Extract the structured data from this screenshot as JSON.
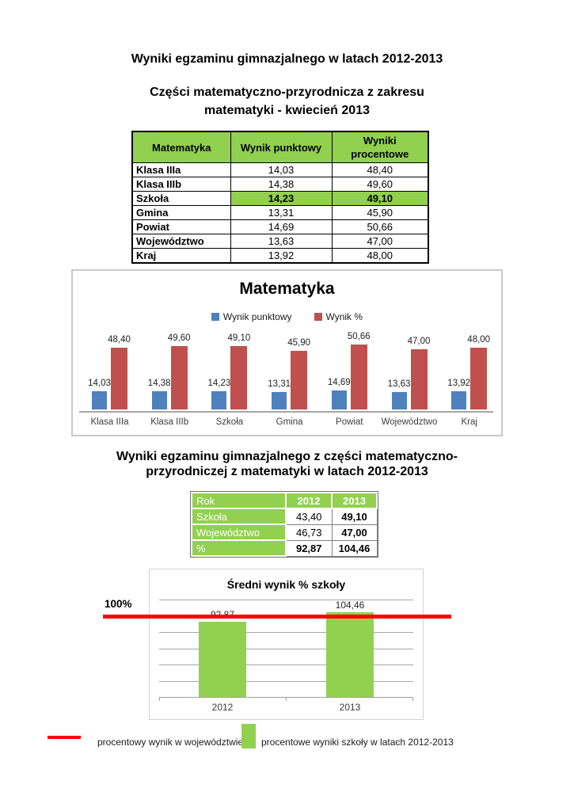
{
  "titles": {
    "main": "Wyniki egzaminu gimnazjalnego w latach 2012-2013",
    "sub_line1": "Części matematyczno-przyrodnicza z zakresu",
    "sub_line2": "matematyki - kwiecień 2013",
    "second_line1": "Wyniki egzaminu gimnazjalnego z części matematyczno-",
    "second_line2": "przyrodniczej z matematyki w latach 2012-2013"
  },
  "table1": {
    "headers": [
      "Matematyka",
      "Wynik punktowy",
      "Wyniki procentowe"
    ],
    "rows": [
      {
        "label": "Klasa IIIa",
        "punktowy": "14,03",
        "procentowe": "48,40",
        "highlight": false
      },
      {
        "label": "Klasa IIIb",
        "punktowy": "14,38",
        "procentowe": "49,60",
        "highlight": false
      },
      {
        "label": "Szkoła",
        "punktowy": "14,23",
        "procentowe": "49,10",
        "highlight": true
      },
      {
        "label": "Gmina",
        "punktowy": "13,31",
        "procentowe": "45,90",
        "highlight": false
      },
      {
        "label": "Powiat",
        "punktowy": "14,69",
        "procentowe": "50,66",
        "highlight": false
      },
      {
        "label": "Województwo",
        "punktowy": "13,63",
        "procentowe": "47,00",
        "highlight": false
      },
      {
        "label": "Kraj",
        "punktowy": "13,92",
        "procentowe": "48,00",
        "highlight": false
      }
    ]
  },
  "table2": {
    "header": {
      "label": "Rok",
      "y2012": "2012",
      "y2013": "2013"
    },
    "rows": [
      {
        "label": "Szkoła",
        "v2012": "43,40",
        "v2013": "49,10",
        "bold2012": false,
        "bold2013": true
      },
      {
        "label": "Województwo",
        "v2012": "46,73",
        "v2013": "47,00",
        "bold2012": false,
        "bold2013": true
      },
      {
        "label": "%",
        "v2012": "92,87",
        "v2013": "104,46",
        "bold2012": true,
        "bold2013": true
      }
    ]
  },
  "chart_data": [
    {
      "type": "bar",
      "title": "Matematyka",
      "categories": [
        "Klasa IIIa",
        "Klasa IIIb",
        "Szkoła",
        "Gmina",
        "Powiat",
        "Województwo",
        "Kraj"
      ],
      "series": [
        {
          "name": "Wynik punktowy",
          "color": "#4f81bd",
          "values": [
            14.03,
            14.38,
            14.23,
            13.31,
            14.69,
            13.63,
            13.92
          ],
          "labels": [
            "14,03",
            "14,38",
            "14,23",
            "13,31",
            "14,69",
            "13,63",
            "13,92"
          ]
        },
        {
          "name": "Wynik %",
          "color": "#c0504d",
          "values": [
            48.4,
            49.6,
            49.1,
            45.9,
            50.66,
            47.0,
            48.0
          ],
          "labels": [
            "48,40",
            "49,60",
            "49,10",
            "45,90",
            "50,66",
            "47,00",
            "48,00"
          ]
        }
      ],
      "legend_position": "top",
      "grid": false,
      "data_labels": true,
      "ylim": [
        0,
        55
      ]
    },
    {
      "type": "bar",
      "title": "Średni wynik % szkoły",
      "categories": [
        "2012",
        "2013"
      ],
      "values": [
        92.87,
        104.46
      ],
      "labels": [
        "92,87",
        "104,46"
      ],
      "bar_color": "#92d050",
      "grid": true,
      "gridline_step": 20,
      "ylim": [
        0,
        120
      ],
      "reference_line": {
        "value": 100,
        "label": "100%",
        "color": "#ff0000"
      }
    }
  ],
  "bottom_legend": {
    "line_label": "procentowy wynik w województwie",
    "line_color": "#ff0000",
    "bar_label": "procentowe wyniki szkoły w latach 2012-2013",
    "bar_color": "#92d050"
  },
  "colors": {
    "table_green": "#92d050",
    "bar_blue": "#4f81bd",
    "bar_red": "#c0504d",
    "bar_green": "#92d050",
    "reference_red": "#ff0000"
  }
}
